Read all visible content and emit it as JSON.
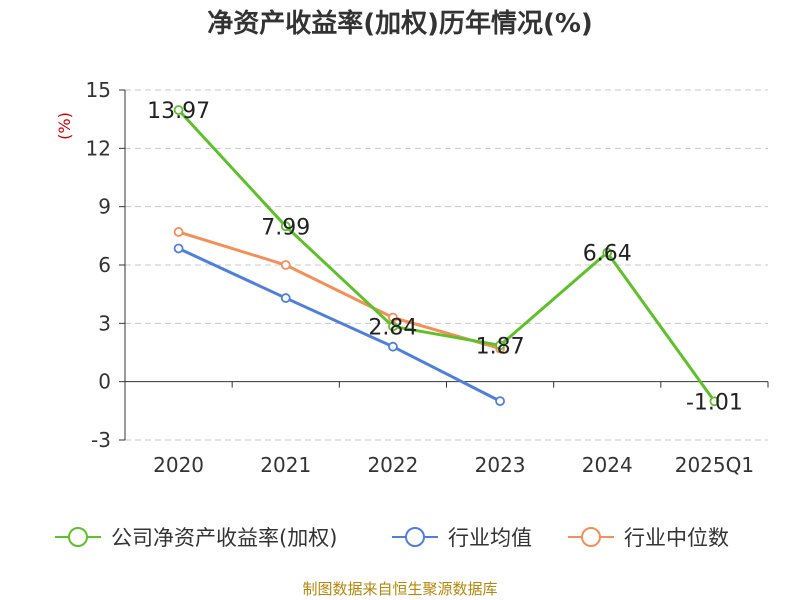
{
  "chart_data": {
    "type": "line",
    "title": "净资产收益率(加权)历年情况(%)",
    "ylabel": "(%)",
    "xlabel": "",
    "categories": [
      "2020",
      "2021",
      "2022",
      "2023",
      "2024",
      "2025Q1"
    ],
    "ylim": [
      -3,
      15
    ],
    "yticks": [
      -3,
      0,
      3,
      6,
      9,
      12,
      15
    ],
    "grid": true,
    "legend_position": "bottom",
    "series": [
      {
        "name": "公司净资产收益率(加权)",
        "color": "#5ec129",
        "values": [
          13.97,
          7.99,
          2.84,
          1.87,
          6.64,
          -1.01
        ],
        "labels": [
          "13.97",
          "7.99",
          "2.84",
          "1.87",
          "6.64",
          "-1.01"
        ]
      },
      {
        "name": "行业均值",
        "color": "#4f7fdb",
        "values": [
          6.85,
          4.3,
          1.8,
          -1.0,
          null,
          null
        ]
      },
      {
        "name": "行业中位数",
        "color": "#f58f5a",
        "values": [
          7.7,
          6.0,
          3.3,
          1.7,
          null,
          null
        ]
      }
    ],
    "source": "制图数据来自恒生聚源数据库"
  }
}
